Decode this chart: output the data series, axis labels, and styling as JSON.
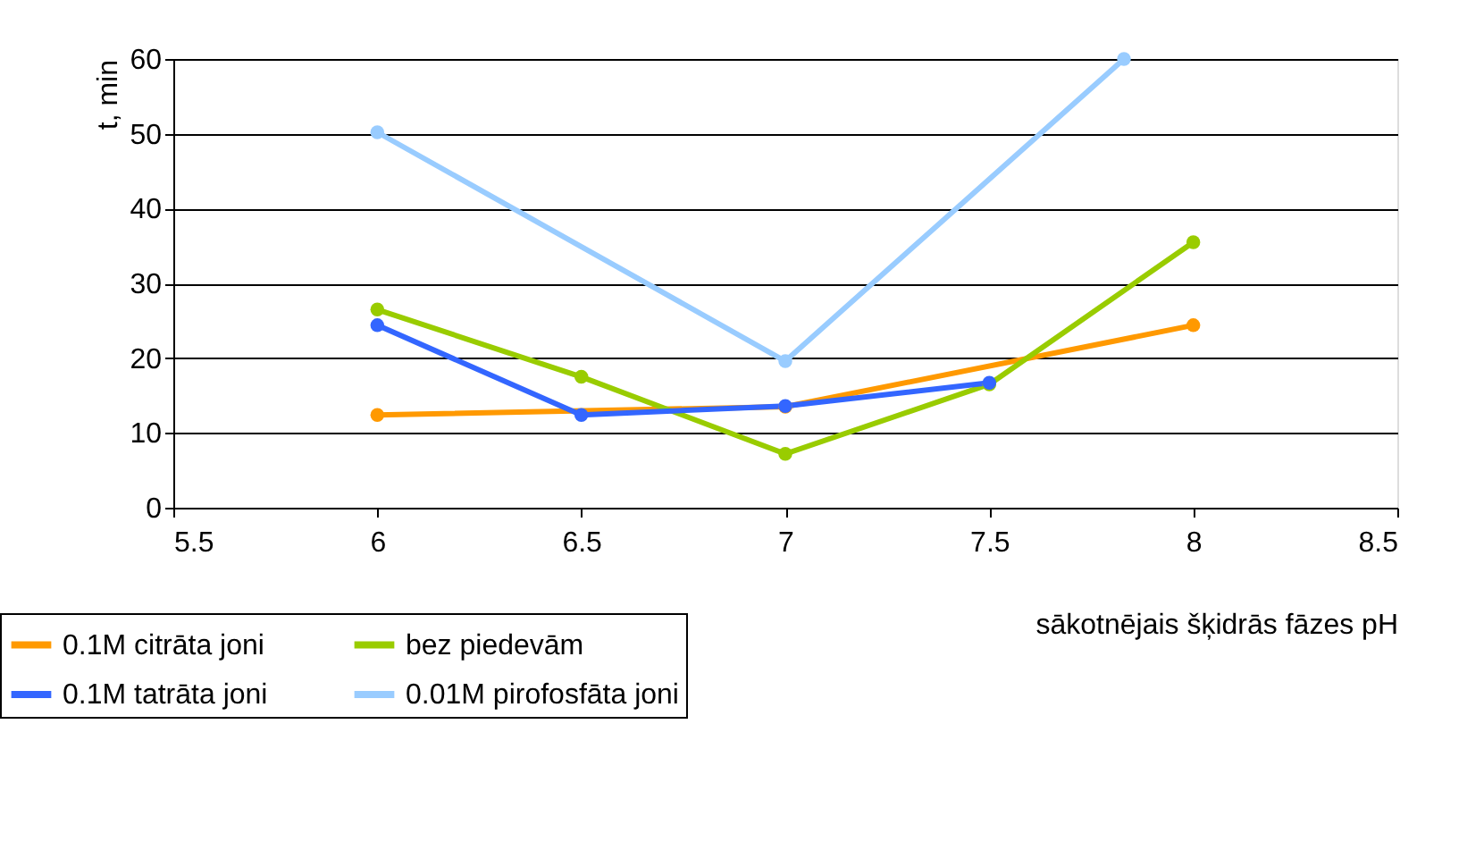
{
  "chart_data": {
    "type": "line",
    "xlabel": "sākotnējais šķidrās fāzes pH",
    "ylabel": "t, min",
    "xlim": [
      5.5,
      8.5
    ],
    "xticks": [
      5.5,
      6,
      6.5,
      7,
      7.5,
      8,
      8.5
    ],
    "ylim": [
      0,
      60
    ],
    "yticks": [
      0,
      10,
      20,
      30,
      40,
      50,
      60
    ],
    "grid": "y",
    "legend": "bottom left",
    "marker": "circle",
    "line_style": "solid",
    "series": [
      {
        "name": "0.1M citrāta joni",
        "color": "#ff9900",
        "x": [
          6,
          7,
          8
        ],
        "values": [
          12.4,
          13.5,
          24.4
        ]
      },
      {
        "name": "bez piedevām",
        "color": "#99cc00",
        "x": [
          6,
          6.5,
          7,
          7.5,
          8
        ],
        "values": [
          26.5,
          17.5,
          7.2,
          16.5,
          35.5
        ]
      },
      {
        "name": "0.1M tatrāta joni",
        "color": "#3366ff",
        "x": [
          6,
          6.5,
          7,
          7.5
        ],
        "values": [
          24.4,
          12.4,
          13.6,
          16.7
        ]
      },
      {
        "name": "0.01M pirofosfāta joni",
        "color": "#99ccff",
        "x": [
          6,
          7,
          7.83
        ],
        "values": [
          50.2,
          19.6,
          60
        ]
      }
    ]
  }
}
